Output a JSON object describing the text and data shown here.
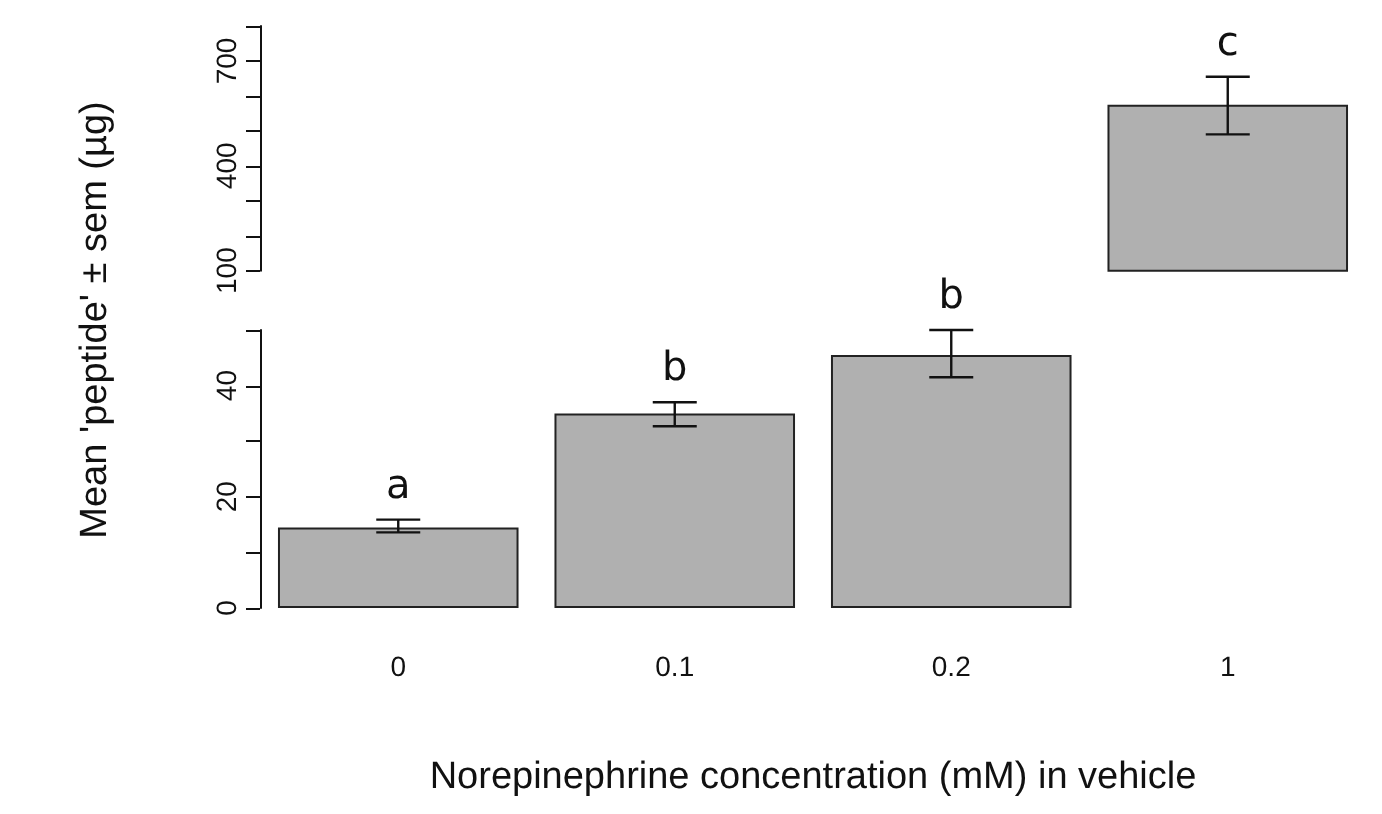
{
  "chart_data": [
    {
      "type": "bar",
      "ylabel": "Mean 'peptide' ± sem (µg)",
      "categories": [
        "0",
        "0.1",
        "0.2",
        "1"
      ],
      "color": "#b0b0b0",
      "values": [
        null,
        null,
        null,
        575
      ],
      "errors": [
        null,
        null,
        null,
        [
          490,
          655
        ]
      ],
      "ylim": [
        100,
        800
      ],
      "yticks": [
        100,
        {
          "value": 200,
          "label": null
        },
        {
          "value": 300,
          "label": null
        },
        400,
        {
          "value": 500,
          "label": null
        },
        {
          "value": 600,
          "label": null
        },
        700,
        {
          "value": 800,
          "label": null
        }
      ],
      "annotations": [
        "c"
      ],
      "tick_labels": "y",
      "grid": false
    },
    {
      "type": "bar",
      "xlabel": "Norepinephrine concentration (mM) in vehicle",
      "categories": [
        "0",
        "0.1",
        "0.2",
        "1"
      ],
      "color": "#b0b0b0",
      "values": [
        14.5,
        35,
        45.5,
        null
      ],
      "errors": [
        [
          13.6,
          15.9
        ],
        [
          32.7,
          37
        ],
        [
          41.5,
          50
        ],
        null
      ],
      "ylim": [
        0,
        50
      ],
      "yticks": [
        0,
        {
          "value": 10,
          "label": null
        },
        20,
        {
          "value": 30,
          "label": null
        },
        40,
        {
          "value": 50,
          "label": null
        }
      ],
      "annotations": [
        "a",
        "b",
        "b"
      ],
      "grid": false
    }
  ]
}
